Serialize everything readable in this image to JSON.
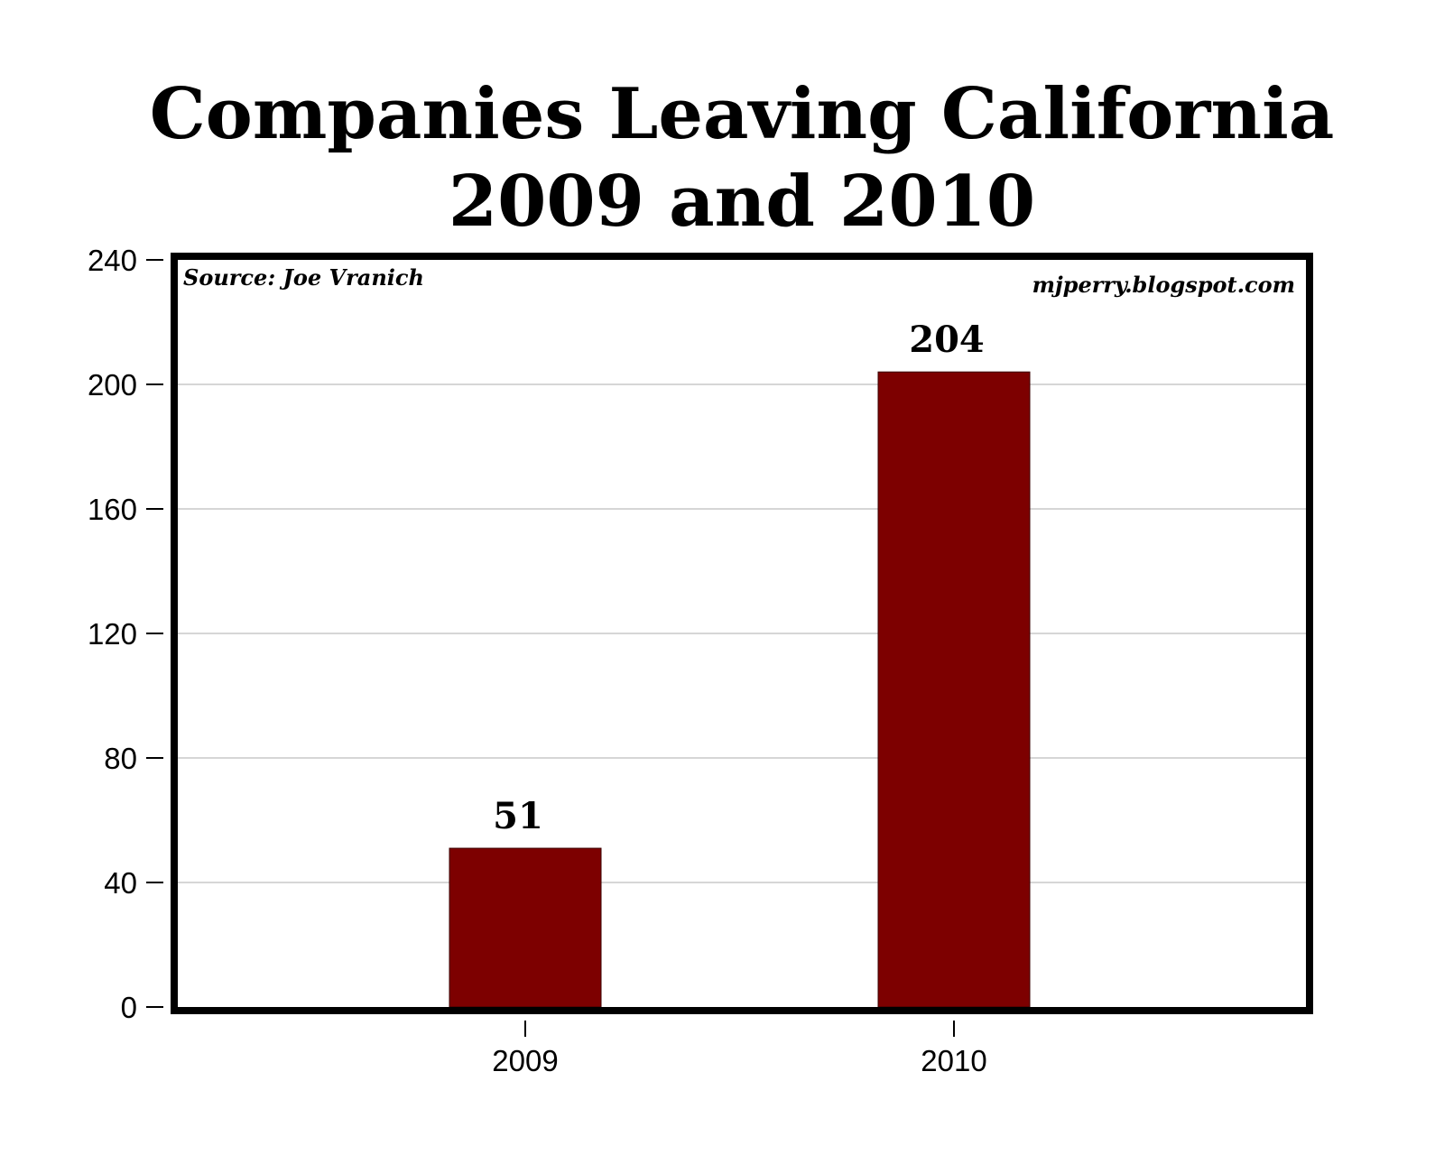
{
  "chart_data": {
    "type": "bar",
    "title": [
      "Companies Leaving California",
      "2009 and 2010"
    ],
    "categories": [
      "2009",
      "2010"
    ],
    "values": [
      51,
      204
    ],
    "data_labels": [
      "51",
      "204"
    ],
    "ylim": [
      0,
      240
    ],
    "yticks": [
      0,
      40,
      80,
      120,
      160,
      200,
      240
    ],
    "grid": true,
    "source_note": "Source: Joe Vranich",
    "credit_note": "mjperry.blogspot.com",
    "colors": {
      "bar": "#7d0000",
      "grid": "#c8c8c8",
      "frame": "#000000"
    }
  }
}
